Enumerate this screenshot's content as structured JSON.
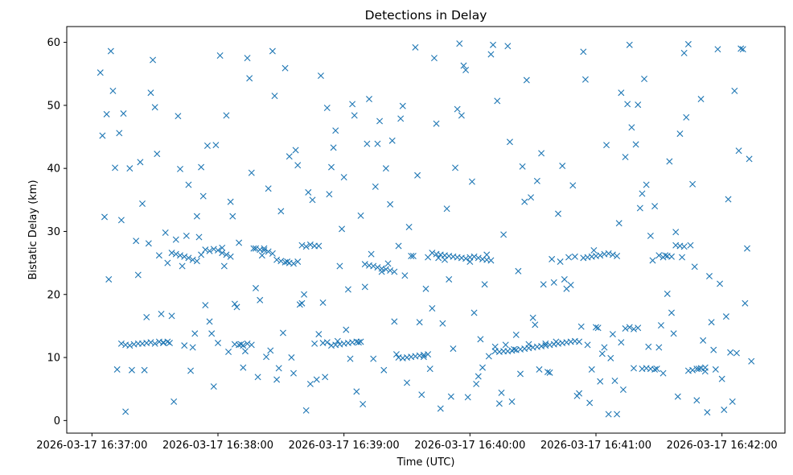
{
  "chart_data": {
    "type": "scatter",
    "title": "Detections in Delay",
    "xlabel": "Time (UTC)",
    "ylabel": "Bistatic Delay (km)",
    "x_ticks": [
      "2026-03-17 16:37:00",
      "2026-03-17 16:38:00",
      "2026-03-17 16:39:00",
      "2026-03-17 16:40:00",
      "2026-03-17 16:41:00",
      "2026-03-17 16:42:00"
    ],
    "y_ticks": [
      "0",
      "10",
      "20",
      "30",
      "40",
      "50",
      "60"
    ],
    "xlim": [
      "2026-03-17 16:36:48",
      "2026-03-17 16:42:30"
    ],
    "ylim": [
      -2,
      62.5
    ],
    "marker": "x",
    "grid": false,
    "color": "#1f77b4",
    "series": [
      {
        "time": [
          "16:37:04",
          "16:37:05",
          "16:37:06",
          "16:37:07",
          "16:37:08",
          "16:37:09",
          "16:37:10",
          "16:37:11",
          "16:37:12",
          "16:37:13",
          "16:37:14",
          "16:37:15",
          "16:37:16",
          "16:37:18",
          "16:37:19",
          "16:37:21",
          "16:37:22",
          "16:37:23",
          "16:37:24",
          "16:37:25",
          "16:37:26",
          "16:37:27",
          "16:37:28",
          "16:37:29",
          "16:37:30",
          "16:37:31",
          "16:37:32",
          "16:37:33",
          "16:37:34",
          "16:37:35",
          "16:37:36",
          "16:37:37",
          "16:37:38",
          "16:37:39",
          "16:37:40",
          "16:37:41",
          "16:37:42",
          "16:37:43",
          "16:37:44",
          "16:37:45",
          "16:37:46",
          "16:37:47",
          "16:37:48",
          "16:37:49",
          "16:37:50",
          "16:37:51",
          "16:37:52",
          "16:37:53",
          "16:37:54",
          "16:37:55",
          "16:37:56",
          "16:37:57",
          "16:37:58",
          "16:37:59",
          "16:38:00",
          "16:38:01",
          "16:38:02",
          "16:38:03",
          "16:38:04",
          "16:38:05",
          "16:38:06",
          "16:38:07",
          "16:38:08",
          "16:38:09",
          "16:38:10",
          "16:38:11",
          "16:38:12",
          "16:38:13",
          "16:38:14",
          "16:38:15",
          "16:38:16",
          "16:38:17",
          "16:38:18",
          "16:38:19",
          "16:38:20",
          "16:38:21",
          "16:38:22",
          "16:38:23",
          "16:38:24",
          "16:38:25",
          "16:38:26",
          "16:38:27",
          "16:38:28",
          "16:38:29",
          "16:38:30",
          "16:38:31",
          "16:38:32",
          "16:38:33",
          "16:38:34",
          "16:38:35",
          "16:38:36",
          "16:38:37",
          "16:38:38",
          "16:38:39",
          "16:38:40",
          "16:38:41",
          "16:38:42",
          "16:38:43",
          "16:38:44",
          "16:38:45",
          "16:38:46",
          "16:38:47",
          "16:38:48",
          "16:38:49",
          "16:38:50",
          "16:38:51",
          "16:38:52",
          "16:38:53",
          "16:38:54",
          "16:38:55",
          "16:38:56",
          "16:38:57",
          "16:38:58",
          "16:38:59",
          "16:39:00",
          "16:39:01",
          "16:39:02",
          "16:39:03",
          "16:39:04",
          "16:39:05",
          "16:39:06",
          "16:39:07",
          "16:39:08",
          "16:39:09",
          "16:39:10",
          "16:39:11",
          "16:39:12",
          "16:39:13",
          "16:39:14",
          "16:39:15",
          "16:39:16",
          "16:39:17",
          "16:39:18",
          "16:39:19",
          "16:39:20",
          "16:39:21",
          "16:39:22",
          "16:39:23",
          "16:39:24",
          "16:39:25",
          "16:39:26",
          "16:39:27",
          "16:39:28",
          "16:39:29",
          "16:39:30",
          "16:39:31",
          "16:39:32",
          "16:39:33",
          "16:39:34",
          "16:39:35",
          "16:39:36",
          "16:39:37",
          "16:39:38",
          "16:39:39",
          "16:39:40",
          "16:39:41",
          "16:39:42",
          "16:39:43",
          "16:39:44",
          "16:39:45",
          "16:39:46",
          "16:39:47",
          "16:39:48",
          "16:39:49",
          "16:39:50",
          "16:39:51",
          "16:39:52",
          "16:39:53",
          "16:39:54",
          "16:39:55",
          "16:39:56",
          "16:39:57",
          "16:39:58",
          "16:39:59",
          "16:40:00",
          "16:40:01",
          "16:40:02",
          "16:40:03",
          "16:40:04",
          "16:40:05",
          "16:40:06",
          "16:40:07",
          "16:40:08",
          "16:40:09",
          "16:40:10",
          "16:40:11",
          "16:40:12",
          "16:40:13",
          "16:40:14",
          "16:40:15",
          "16:40:16",
          "16:40:17",
          "16:40:18",
          "16:40:19",
          "16:40:20",
          "16:40:21",
          "16:40:22",
          "16:40:23",
          "16:40:24",
          "16:40:25",
          "16:40:26",
          "16:40:27",
          "16:40:28",
          "16:40:29",
          "16:40:30",
          "16:40:31",
          "16:40:32",
          "16:40:33",
          "16:40:34",
          "16:40:35",
          "16:40:36",
          "16:40:37",
          "16:40:38",
          "16:40:39",
          "16:40:40",
          "16:40:41",
          "16:40:42",
          "16:40:43",
          "16:40:44",
          "16:40:45",
          "16:40:46",
          "16:40:47",
          "16:40:48",
          "16:40:49",
          "16:40:50",
          "16:40:51",
          "16:40:52",
          "16:40:53",
          "16:40:54",
          "16:40:55",
          "16:40:56",
          "16:40:57",
          "16:40:58",
          "16:40:59",
          "16:41:00",
          "16:41:01",
          "16:41:02",
          "16:41:03",
          "16:41:04",
          "16:41:05",
          "16:41:06",
          "16:41:07",
          "16:41:08",
          "16:41:09",
          "16:41:10",
          "16:41:11",
          "16:41:12",
          "16:41:13",
          "16:41:14",
          "16:41:15",
          "16:41:16",
          "16:41:17",
          "16:41:18",
          "16:41:19",
          "16:41:20",
          "16:41:21",
          "16:41:22",
          "16:41:23",
          "16:41:24",
          "16:41:25",
          "16:41:26",
          "16:41:27",
          "16:41:28",
          "16:41:29",
          "16:41:30",
          "16:41:31",
          "16:41:32",
          "16:41:33",
          "16:41:34",
          "16:41:35",
          "16:41:36",
          "16:41:37",
          "16:41:38",
          "16:41:39",
          "16:41:40",
          "16:41:41",
          "16:41:42",
          "16:41:43",
          "16:41:44",
          "16:41:45",
          "16:41:46",
          "16:41:47",
          "16:41:48",
          "16:41:49",
          "16:41:50",
          "16:41:51",
          "16:41:52",
          "16:41:53",
          "16:41:54",
          "16:41:55",
          "16:41:56",
          "16:41:57",
          "16:41:58",
          "16:41:59",
          "16:42:00",
          "16:42:01",
          "16:42:02",
          "16:42:03",
          "16:42:04",
          "16:42:05",
          "16:42:06",
          "16:42:07",
          "16:42:08",
          "16:42:09",
          "16:42:10",
          "16:42:11",
          "16:42:12",
          "16:42:13",
          "16:42:14"
        ],
        "delay_km": [
          55.2,
          45.2,
          32.3,
          48.6,
          22.4,
          58.6,
          52.3,
          40.1,
          8.1,
          45.6,
          31.8,
          48.7,
          1.4,
          40.0,
          8.0,
          28.5,
          23.1,
          41.0,
          34.4,
          8.0,
          16.4,
          28.1,
          52.0,
          57.2,
          49.7,
          42.3,
          26.2,
          16.9,
          12.3,
          29.8,
          25.0,
          12.3,
          16.6,
          3.0,
          28.7,
          48.3,
          39.9,
          24.5,
          11.9,
          29.3,
          37.4,
          7.9,
          11.6,
          13.8,
          32.4,
          29.1,
          40.2,
          35.6,
          18.3,
          43.6,
          15.7,
          13.8,
          5.4,
          43.7,
          12.3,
          57.9,
          27.4,
          24.5,
          48.4,
          10.9,
          34.7,
          32.4,
          18.5,
          18.0,
          28.2,
          12.1,
          8.4,
          11.0,
          57.5,
          54.3,
          39.3,
          27.3,
          21.0,
          6.9,
          19.1,
          26.2,
          27.3,
          10.1,
          36.8,
          11.1,
          58.6,
          51.5,
          6.5,
          8.3,
          33.2,
          13.9,
          55.9,
          25.2,
          41.9,
          10.0,
          7.5,
          42.9,
          40.5,
          18.4,
          18.6,
          20.0,
          1.6,
          36.2,
          5.8,
          35.0,
          12.2,
          6.5,
          13.7,
          54.7,
          18.7,
          6.9,
          49.6,
          35.9,
          40.2,
          43.3,
          46.0,
          12.6,
          24.5,
          30.4,
          38.6,
          14.4,
          20.8,
          9.8,
          50.2,
          48.4,
          4.6,
          12.4,
          32.5,
          2.6,
          21.2,
          43.9,
          51.0,
          26.4,
          9.8,
          37.1,
          43.9,
          47.5,
          23.6,
          8.0,
          40.0,
          24.9,
          34.3,
          44.4,
          15.7,
          10.5,
          27.7,
          47.9,
          49.9,
          23.0,
          6.0,
          30.7,
          26.1,
          26.1,
          59.2,
          38.9,
          15.6,
          4.1,
          10.1,
          20.9,
          25.9,
          8.2,
          17.8,
          57.5,
          47.1,
          25.8,
          1.9,
          15.4,
          25.5,
          33.6,
          22.4,
          3.8,
          11.4,
          40.1,
          49.4,
          59.8,
          48.4,
          56.3,
          55.6,
          3.7,
          25.2,
          37.9,
          17.1,
          5.8,
          7.0,
          12.9,
          8.4,
          21.6,
          26.3,
          10.2,
          58.1,
          59.6,
          11.7,
          50.7,
          2.7,
          4.4,
          29.5,
          12.0,
          59.4,
          44.2,
          3.0,
          11.3,
          13.6,
          23.7,
          7.4,
          40.3,
          34.7,
          54.0,
          12.1,
          35.4,
          16.3,
          15.2,
          38.0,
          8.1,
          42.4,
          21.6,
          12.2,
          7.7,
          7.6,
          25.6,
          21.9,
          12.5,
          32.8,
          25.2,
          40.4,
          22.4,
          20.9,
          25.9,
          21.5,
          37.3,
          26.0,
          3.9,
          4.3,
          14.9,
          58.5,
          54.1,
          12.0,
          2.8,
          8.1,
          27.0,
          14.8,
          14.7,
          6.2,
          10.6,
          11.6,
          43.7,
          1.0,
          9.9,
          13.7,
          6.3,
          1.0,
          31.3,
          52.0,
          4.9,
          41.8,
          50.2,
          59.6,
          46.5,
          8.3,
          43.8,
          50.1,
          33.7,
          36.0,
          54.2,
          37.4,
          11.7,
          29.3,
          25.4,
          34.0,
          8.2,
          11.6,
          15.1,
          7.5,
          26.2,
          20.1,
          41.1,
          17.1,
          13.8,
          29.9,
          3.8,
          45.5,
          25.9,
          58.3,
          48.1,
          59.7,
          27.8,
          37.5,
          24.4,
          3.2,
          8.2,
          51.0,
          12.7,
          7.8,
          1.3,
          22.9,
          15.6,
          11.2,
          8.1,
          58.9,
          21.7,
          6.6,
          1.7,
          16.5,
          35.1,
          10.8,
          3.0,
          52.3,
          10.7,
          42.8,
          59.0,
          58.9,
          18.6,
          27.3,
          41.5,
          9.4
        ]
      },
      {
        "name": "",
        "time": [
          "16:37:14",
          "16:37:16",
          "16:37:18",
          "16:37:20",
          "16:37:22",
          "16:37:24",
          "16:37:26",
          "16:37:28",
          "16:37:30",
          "16:37:32",
          "16:37:34",
          "16:37:36",
          "16:37:38",
          "16:37:40",
          "16:37:42",
          "16:37:44",
          "16:37:46",
          "16:37:48",
          "16:37:50",
          "16:37:52",
          "16:37:54",
          "16:37:56",
          "16:37:58",
          "16:38:00",
          "16:38:02",
          "16:38:04",
          "16:38:06",
          "16:38:08",
          "16:38:10",
          "16:38:12",
          "16:38:14",
          "16:38:16",
          "16:38:18",
          "16:38:20",
          "16:38:22",
          "16:38:24",
          "16:38:26",
          "16:38:28",
          "16:38:30",
          "16:38:32",
          "16:38:34",
          "16:38:36",
          "16:38:38",
          "16:38:40",
          "16:38:42",
          "16:38:44",
          "16:38:46",
          "16:38:48",
          "16:38:50",
          "16:38:52",
          "16:38:54",
          "16:38:56",
          "16:38:58",
          "16:39:00",
          "16:39:02",
          "16:39:04",
          "16:39:06",
          "16:39:08",
          "16:39:10",
          "16:39:12",
          "16:39:14",
          "16:39:16",
          "16:39:18",
          "16:39:20",
          "16:39:22",
          "16:39:24",
          "16:39:26",
          "16:39:28",
          "16:39:30",
          "16:39:32",
          "16:39:34",
          "16:39:36",
          "16:39:38",
          "16:39:40",
          "16:39:42",
          "16:39:44",
          "16:39:46",
          "16:39:48",
          "16:39:50",
          "16:39:52",
          "16:39:54",
          "16:39:56",
          "16:39:58",
          "16:40:00",
          "16:40:02",
          "16:40:04",
          "16:40:06",
          "16:40:08",
          "16:40:10",
          "16:40:12",
          "16:40:14",
          "16:40:16",
          "16:40:18",
          "16:40:20",
          "16:40:22",
          "16:40:24",
          "16:40:26",
          "16:40:28",
          "16:40:30",
          "16:40:32",
          "16:40:34",
          "16:40:36",
          "16:40:38",
          "16:40:40",
          "16:40:42",
          "16:40:44",
          "16:40:46",
          "16:40:48",
          "16:40:50",
          "16:40:52",
          "16:40:54",
          "16:40:56",
          "16:40:58",
          "16:41:00",
          "16:41:02",
          "16:41:04",
          "16:41:06",
          "16:41:08",
          "16:41:10",
          "16:41:12",
          "16:41:14",
          "16:41:16",
          "16:41:18",
          "16:41:20",
          "16:41:22",
          "16:41:24",
          "16:41:26",
          "16:41:28",
          "16:41:30",
          "16:41:32",
          "16:41:34",
          "16:41:36",
          "16:41:38",
          "16:41:40",
          "16:41:42",
          "16:41:44",
          "16:41:46",
          "16:41:48",
          "16:41:50",
          "16:41:52"
        ],
        "delay_km": [
          12.2,
          12.0,
          11.9,
          12.1,
          12.2,
          12.2,
          12.3,
          12.4,
          12.2,
          12.5,
          12.4,
          12.5,
          26.6,
          26.4,
          26.2,
          26.0,
          25.8,
          25.5,
          25.3,
          26.3,
          27.1,
          26.9,
          27.2,
          27.0,
          26.6,
          26.3,
          26.0,
          12.1,
          12.0,
          11.9,
          12.2,
          12.0,
          27.3,
          27.1,
          27.0,
          26.8,
          26.5,
          25.5,
          25.3,
          25.1,
          25.0,
          24.9,
          25.2,
          27.8,
          27.6,
          27.9,
          27.7,
          27.7,
          12.3,
          12.4,
          11.9,
          12.0,
          12.1,
          12.2,
          12.3,
          12.4,
          12.5,
          12.5,
          24.8,
          24.6,
          24.5,
          24.3,
          24.1,
          24.0,
          23.8,
          23.6,
          10.0,
          9.9,
          10.0,
          10.1,
          10.2,
          10.3,
          10.4,
          10.5,
          26.6,
          26.4,
          26.3,
          26.2,
          26.1,
          26.0,
          25.9,
          25.8,
          25.7,
          25.9,
          26.0,
          25.8,
          25.6,
          25.5,
          25.4,
          11.0,
          10.9,
          11.0,
          11.0,
          11.1,
          11.2,
          11.3,
          11.4,
          11.5,
          11.6,
          11.7,
          11.8,
          11.9,
          12.0,
          12.1,
          12.2,
          12.3,
          12.4,
          12.5,
          12.6,
          12.5,
          25.8,
          25.9,
          26.0,
          26.1,
          26.2,
          26.4,
          26.5,
          26.3,
          26.1,
          12.4,
          14.6,
          14.8,
          14.5,
          14.7,
          8.2,
          8.3,
          8.2,
          8.1,
          26.2,
          25.9,
          26.1,
          26.0,
          27.8,
          27.7,
          27.6,
          7.9,
          8.0,
          8.2,
          8.3,
          8.4
        ]
      }
    ]
  }
}
